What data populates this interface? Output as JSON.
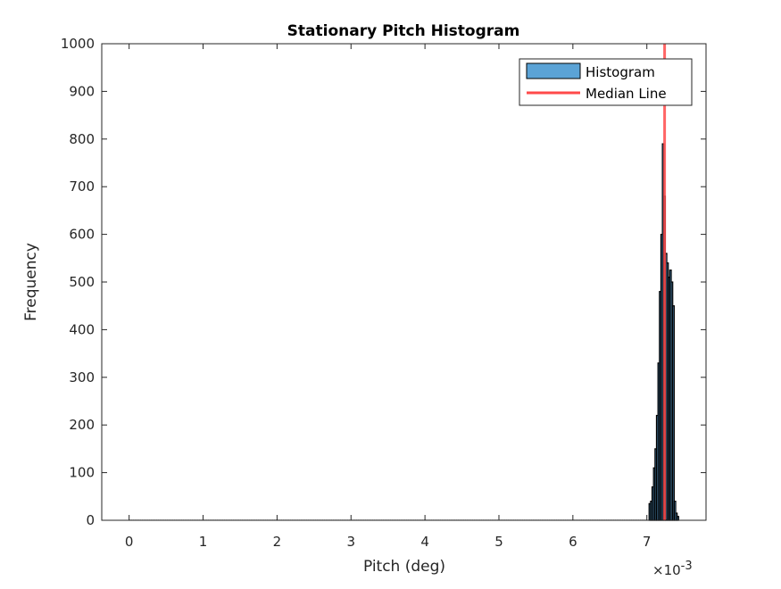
{
  "chart_data": {
    "type": "bar",
    "title": "Stationary Pitch Histogram",
    "xlabel": "Pitch (deg)",
    "ylabel": "Frequency",
    "x_exponent_label": "×10",
    "x_exponent_power": "-3",
    "xlim": [
      -0.37,
      7.8
    ],
    "ylim": [
      0,
      1000
    ],
    "xticks": [
      0,
      1,
      2,
      3,
      4,
      5,
      6,
      7
    ],
    "xtick_labels": [
      "0",
      "1",
      "2",
      "3",
      "4",
      "5",
      "6",
      "7"
    ],
    "yticks": [
      0,
      100,
      200,
      300,
      400,
      500,
      600,
      700,
      800,
      900,
      1000
    ],
    "ytick_labels": [
      "0",
      "100",
      "200",
      "300",
      "400",
      "500",
      "600",
      "700",
      "800",
      "900",
      "1000"
    ],
    "grid": false,
    "legend_position": "top-right",
    "series": [
      {
        "name": "Histogram",
        "kind": "histogram",
        "bin_width": 0.02,
        "x": [
          7.04,
          7.06,
          7.08,
          7.1,
          7.12,
          7.14,
          7.16,
          7.18,
          7.2,
          7.22,
          7.24,
          7.26,
          7.28,
          7.3,
          7.32,
          7.34,
          7.36,
          7.38,
          7.4,
          7.42
        ],
        "values": [
          35,
          40,
          70,
          110,
          150,
          220,
          330,
          480,
          600,
          790,
          680,
          560,
          540,
          510,
          525,
          500,
          450,
          40,
          15,
          8
        ]
      },
      {
        "name": "Median Line",
        "kind": "vline",
        "x": 7.24
      }
    ],
    "colors": {
      "bar_fill": "#5ba3d6",
      "bar_edge": "#000000",
      "median_line": "#ff4a4a",
      "axes": "#262626"
    }
  }
}
